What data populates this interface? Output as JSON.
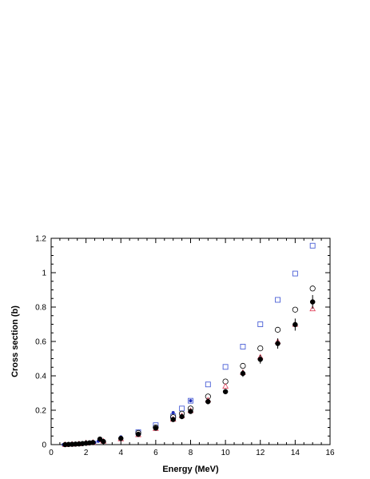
{
  "chart_data": {
    "type": "scatter",
    "title": "",
    "xlabel": "Energy (MeV)",
    "ylabel": "Cross section (b)",
    "xlim": [
      0,
      16
    ],
    "ylim": [
      0,
      1.2
    ],
    "xticks": [
      0,
      2,
      4,
      6,
      8,
      10,
      12,
      14,
      16
    ],
    "yticks": [
      0,
      0.2,
      0.4,
      0.6,
      0.8,
      1,
      1.2
    ],
    "xtick_labels": [
      "0",
      "2",
      "4",
      "6",
      "8",
      "10",
      "12",
      "14",
      "16"
    ],
    "ytick_labels": [
      "0",
      "0.2",
      "0.4",
      "0.6",
      "0.8",
      "1",
      "1.2"
    ],
    "grid": false,
    "series": [
      {
        "marker": "filled-circle",
        "color": "#000000",
        "x": [
          0.8,
          1.0,
          1.2,
          1.4,
          1.6,
          1.8,
          2.0,
          2.2,
          2.4,
          2.8,
          3.0,
          4.0,
          5.0,
          6.0,
          7.0,
          7.5,
          8.0,
          9.0,
          10.0,
          11.0,
          12.0,
          13.0,
          14.0,
          15.0
        ],
        "y": [
          0.0,
          0.001,
          0.002,
          0.003,
          0.004,
          0.006,
          0.008,
          0.01,
          0.012,
          0.032,
          0.018,
          0.036,
          0.06,
          0.096,
          0.146,
          0.163,
          0.193,
          0.25,
          0.308,
          0.414,
          0.496,
          0.588,
          0.698,
          0.83
        ],
        "yerr": [
          0.0,
          0.0,
          0.0,
          0.0,
          0.0,
          0.0,
          0.0,
          0.0,
          0.0,
          0.005,
          0.005,
          0.005,
          0.006,
          0.008,
          0.01,
          0.01,
          0.012,
          0.014,
          0.015,
          0.02,
          0.025,
          0.03,
          0.035,
          0.04
        ]
      },
      {
        "marker": "open-circle",
        "color": "#000000",
        "x": [
          5.0,
          6.0,
          7.0,
          7.5,
          8.0,
          9.0,
          10.0,
          11.0,
          12.0,
          13.0,
          14.0,
          15.0
        ],
        "y": [
          0.068,
          0.1,
          0.16,
          0.18,
          0.21,
          0.28,
          0.367,
          0.458,
          0.56,
          0.668,
          0.785,
          0.908
        ]
      },
      {
        "marker": "open-square",
        "color": "#4a5fd6",
        "x": [
          5.0,
          6.0,
          7.0,
          7.5,
          8.0,
          9.0,
          10.0,
          11.0,
          12.0,
          13.0,
          14.0,
          15.0
        ],
        "y": [
          0.072,
          0.113,
          0.165,
          0.21,
          0.255,
          0.35,
          0.452,
          0.57,
          0.7,
          0.842,
          0.995,
          1.157
        ]
      },
      {
        "marker": "open-triangle",
        "color": "#e0405a",
        "x": [
          0.8,
          1.2,
          1.6,
          2.0,
          2.4,
          2.8,
          3.0,
          4.0,
          5.0,
          6.0,
          7.0,
          7.5,
          8.0,
          9.0,
          10.0,
          11.0,
          12.0,
          13.0,
          14.0,
          15.0
        ],
        "y": [
          0.001,
          0.003,
          0.005,
          0.009,
          0.013,
          0.028,
          0.02,
          0.034,
          0.058,
          0.094,
          0.148,
          0.168,
          0.198,
          0.26,
          0.34,
          0.42,
          0.51,
          0.6,
          0.7,
          0.79
        ]
      },
      {
        "marker": "small-dot",
        "color": "#1f2fb8",
        "x": [
          0.7,
          0.9,
          1.1,
          1.3,
          1.5,
          1.7,
          1.9,
          2.1,
          2.3,
          2.5,
          2.7,
          3.0,
          4.0,
          7.0,
          8.0
        ],
        "y": [
          0.0,
          0.001,
          0.002,
          0.003,
          0.004,
          0.005,
          0.007,
          0.009,
          0.011,
          0.013,
          0.02,
          0.022,
          0.045,
          0.186,
          0.255
        ]
      }
    ]
  }
}
